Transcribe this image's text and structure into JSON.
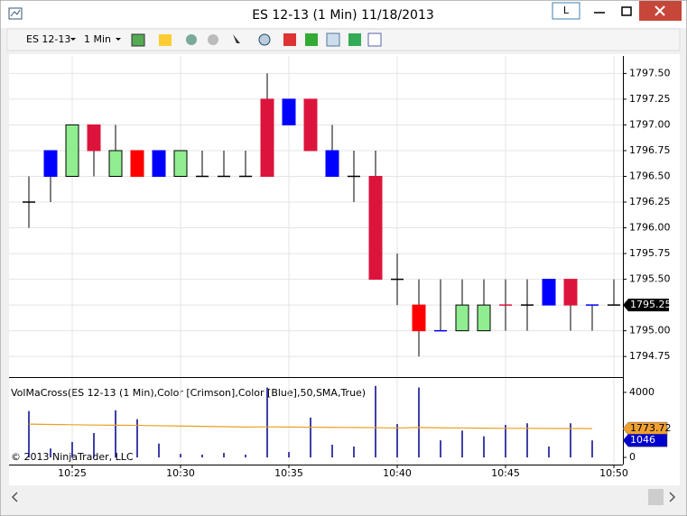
{
  "window": {
    "title": "ES 12-13 (1 Min)  11/18/2013",
    "button": "L"
  },
  "toolbar": {
    "instrument": "ES 12-13",
    "interval": "1 Min"
  },
  "copyright": "© 2013 NinjaTrader, LLC",
  "chart_data": [
    {
      "type": "candlestick",
      "categories": [
        null,
        null,
        "10:25",
        null,
        null,
        null,
        null,
        "10:30",
        null,
        null,
        null,
        null,
        "10:35",
        null,
        null,
        null,
        null,
        "10:40",
        null,
        null,
        null,
        null,
        "10:45",
        null,
        null,
        null,
        null,
        "10:50"
      ],
      "open": [
        1796.25,
        1796.5,
        1796.5,
        1797.0,
        1796.5,
        1796.75,
        1796.5,
        1796.5,
        1796.5,
        1796.5,
        1796.5,
        1797.25,
        1797.0,
        1797.25,
        1796.5,
        1796.5,
        1796.5,
        1795.5,
        1795.25,
        1795.0,
        1795.0,
        1795.0,
        1795.25,
        1795.25,
        1795.25,
        1795.5,
        1795.25,
        1795.25
      ],
      "high": [
        1796.5,
        1796.75,
        1797.0,
        1797.0,
        1797.0,
        1796.75,
        1796.75,
        1796.75,
        1796.75,
        1796.75,
        1796.75,
        1797.5,
        1797.25,
        1797.25,
        1797.0,
        1796.75,
        1796.75,
        1795.75,
        1795.5,
        1795.5,
        1795.5,
        1795.5,
        1795.5,
        1795.5,
        1795.5,
        1795.5,
        1795.25,
        1795.5
      ],
      "low": [
        1796.0,
        1796.25,
        1796.5,
        1796.5,
        1796.5,
        1796.5,
        1796.5,
        1796.5,
        1796.5,
        1796.5,
        1796.5,
        1796.5,
        1797.0,
        1796.75,
        1796.5,
        1796.25,
        1795.5,
        1795.25,
        1794.75,
        1795.0,
        1795.0,
        1795.0,
        1795.0,
        1795.0,
        1795.25,
        1795.0,
        1795.0,
        1795.25
      ],
      "close": [
        1796.25,
        1796.75,
        1797.0,
        1796.75,
        1796.75,
        1796.5,
        1796.75,
        1796.75,
        1796.5,
        1796.5,
        1796.5,
        1796.5,
        1797.25,
        1796.75,
        1796.75,
        1796.5,
        1795.5,
        1795.5,
        1795.0,
        1795.0,
        1795.25,
        1795.25,
        1795.25,
        1795.25,
        1795.5,
        1795.25,
        1795.25,
        1795.25
      ],
      "colors": [
        "#000000",
        "#0000ff",
        "#90ee90",
        "#dc143c",
        "#90ee90",
        "#ff0000",
        "#0000ff",
        "#90ee90",
        "#000000",
        "#000000",
        "#000000",
        "#dc143c",
        "#0000ff",
        "#dc143c",
        "#0000ff",
        "#000000",
        "#dc143c",
        "#000000",
        "#ff0000",
        "#0000ff",
        "#90ee90",
        "#90ee90",
        "#dc143c",
        "#000000",
        "#0000ff",
        "#dc143c",
        "#0000ff",
        "#000000"
      ],
      "ylim": [
        1794.55,
        1797.67
      ],
      "yticks": [
        {
          "value": 1794.75,
          "label": "1794.75"
        },
        {
          "value": 1795.0,
          "label": "1795.00"
        },
        1795.25,
        {
          "value": 1795.5,
          "label": "1795.50"
        },
        1795.75,
        {
          "value": 1796.0,
          "label": "1796.00"
        },
        1796.25,
        {
          "value": 1796.5,
          "label": "1796.50"
        },
        1796.75,
        {
          "value": 1797.0,
          "label": "1797.00"
        },
        1797.25,
        {
          "value": 1797.5,
          "label": "1797.50"
        }
      ],
      "last_price": 1795.25,
      "grid": true
    },
    {
      "type": "bar",
      "title": "VolMaCross(ES 12-13 (1 Min),Color [Crimson],Color [Blue],50,SMA,True)",
      "series": [
        {
          "color": "#00008b",
          "values": [
            2850,
            550,
            950,
            1500,
            2900,
            2350,
            850,
            220,
            170,
            280,
            170,
            4300,
            330,
            2450,
            780,
            670,
            4400,
            2050,
            4300,
            1050,
            1650,
            1300,
            2000,
            2100,
            670,
            2100,
            1046,
            null
          ]
        },
        {
          "color": "#e8a020",
          "values": [
            2050,
            2030,
            2010,
            1990,
            1980,
            1970,
            1950,
            1930,
            1910,
            1890,
            1870,
            1880,
            1870,
            1860,
            1850,
            1840,
            1830,
            1810,
            1840,
            1820,
            1810,
            1800,
            1790,
            1790,
            1780,
            1780,
            1773.72,
            null
          ]
        }
      ],
      "ylim": [
        -440,
        4830
      ],
      "yticks": [
        0,
        4000
      ],
      "markers": [
        {
          "value": 1773.72,
          "color": "#f0a030"
        },
        {
          "value": 1046,
          "color": "#0000cc"
        }
      ]
    }
  ]
}
